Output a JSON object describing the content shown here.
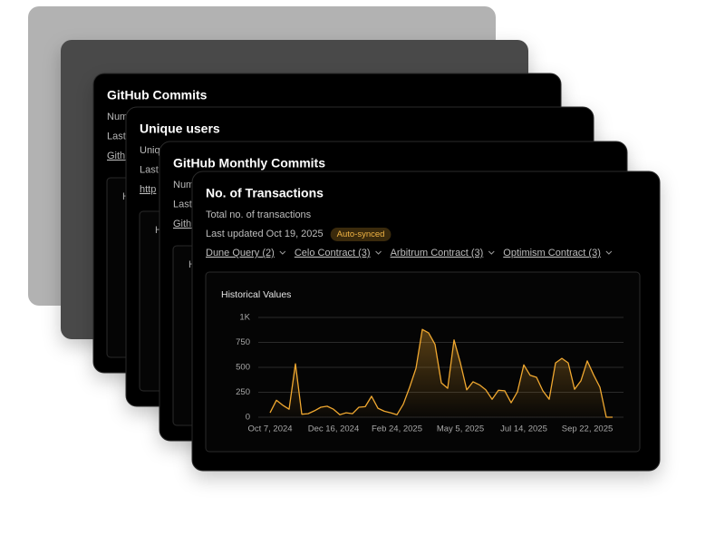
{
  "back_cards": [
    {
      "title": "GitHub Commits",
      "lines": [
        "Num",
        "Last",
        "Githu"
      ],
      "panel_title": "H"
    },
    {
      "title": "Unique users",
      "lines": [
        "Uniq",
        "Last",
        "http"
      ],
      "panel_title": "H"
    },
    {
      "title": "GitHub Monthly Commits",
      "lines": [
        "Num",
        "Last",
        "Githu"
      ],
      "panel_title": "H"
    }
  ],
  "front_card": {
    "title": "No. of Transactions",
    "description": "Total no. of transactions",
    "last_updated": "Last updated Oct 19, 2025",
    "badge": "Auto-synced",
    "filters": [
      "Dune Query (2)",
      "Celo Contract (3)",
      "Arbitrum Contract (3)",
      "Optimism Contract (3)"
    ],
    "chart": {
      "type": "line",
      "title": "Historical Values",
      "color": "#f0a830",
      "categories": [
        "Oct 7, 2024",
        null,
        null,
        null,
        null,
        null,
        null,
        null,
        null,
        null,
        "Dec 16, 2024",
        null,
        null,
        null,
        null,
        null,
        null,
        null,
        null,
        null,
        "Feb 24, 2025",
        null,
        null,
        null,
        null,
        null,
        null,
        null,
        null,
        null,
        "May 5, 2025",
        null,
        null,
        null,
        null,
        null,
        null,
        null,
        null,
        null,
        "Jul 14, 2025",
        null,
        null,
        null,
        null,
        null,
        null,
        null,
        null,
        null,
        "Sep 22, 2025",
        null,
        null,
        null,
        null
      ],
      "values": [
        45,
        170,
        120,
        80,
        535,
        30,
        35,
        65,
        100,
        110,
        80,
        25,
        45,
        35,
        100,
        105,
        210,
        90,
        60,
        45,
        25,
        130,
        300,
        490,
        880,
        845,
        730,
        345,
        290,
        775,
        545,
        275,
        355,
        325,
        275,
        180,
        270,
        265,
        145,
        255,
        525,
        420,
        400,
        265,
        180,
        545,
        590,
        545,
        280,
        365,
        565,
        425,
        300,
        0,
        0
      ],
      "ylim": [
        0,
        1000
      ],
      "yticks": [
        0,
        250,
        500,
        750,
        {
          "value": 1000,
          "label": "1K"
        }
      ],
      "grid": true
    }
  }
}
